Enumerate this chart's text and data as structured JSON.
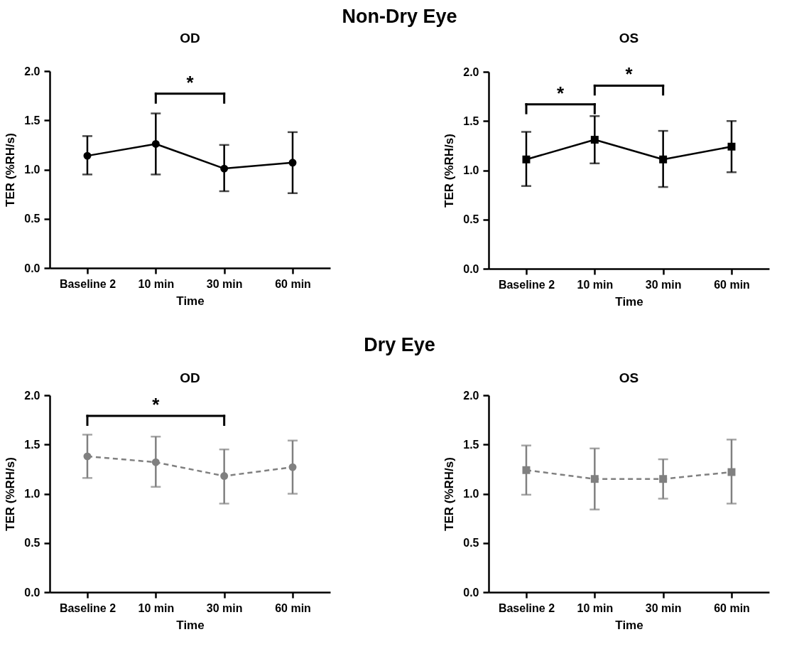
{
  "chart_data": [
    {
      "type": "line",
      "title": "OD",
      "xlabel": "Time",
      "ylabel": "TER (%RH/s)",
      "categories": [
        "Baseline 2",
        "10 min",
        "30 min",
        "60 min"
      ],
      "ylim": [
        0,
        2
      ],
      "yticks": [
        {
          "value": 0,
          "label": "0.0"
        },
        {
          "value": 0.5,
          "label": "0.5"
        },
        {
          "value": 1,
          "label": "1.0"
        },
        {
          "value": 1.5,
          "label": "1.5"
        },
        {
          "value": 2,
          "label": "2.0"
        }
      ],
      "grid": false,
      "marker": "circle",
      "line_style": "solid",
      "annotations": [
        "Non-Dry Eye",
        "*"
      ],
      "series": [
        {
          "color": "#000000",
          "values": [
            1.14,
            1.26,
            1.01,
            1.07
          ],
          "errors": [
            [
              0.95,
              1.34
            ],
            [
              0.95,
              1.57
            ],
            [
              0.78,
              1.25
            ],
            [
              0.76,
              1.38
            ]
          ]
        }
      ]
    },
    {
      "type": "line",
      "title": "OS",
      "xlabel": "Time",
      "ylabel": "TER (%RH/s)",
      "categories": [
        "Baseline 2",
        "10 min",
        "30 min",
        "60 min"
      ],
      "ylim": [
        0,
        2
      ],
      "yticks": [
        {
          "value": 0,
          "label": "0.0"
        },
        {
          "value": 0.5,
          "label": "0.5"
        },
        {
          "value": 1,
          "label": "1.0"
        },
        {
          "value": 1.5,
          "label": "1.5"
        },
        {
          "value": 2,
          "label": "2.0"
        }
      ],
      "grid": false,
      "marker": "square",
      "line_style": "solid",
      "annotations": [
        "*",
        "*"
      ],
      "series": [
        {
          "color": "#000000",
          "values": [
            1.11,
            1.31,
            1.11,
            1.24
          ],
          "errors": [
            [
              0.84,
              1.39
            ],
            [
              1.07,
              1.55
            ],
            [
              0.83,
              1.4
            ],
            [
              0.98,
              1.5
            ]
          ]
        }
      ]
    },
    {
      "type": "line",
      "title": "OD",
      "xlabel": "Time",
      "ylabel": "TER (%RH/s)",
      "categories": [
        "Baseline 2",
        "10 min",
        "30 min",
        "60 min"
      ],
      "ylim": [
        0,
        2
      ],
      "yticks": [
        {
          "value": 0,
          "label": "0.0"
        },
        {
          "value": 0.5,
          "label": "0.5"
        },
        {
          "value": 1,
          "label": "1.0"
        },
        {
          "value": 1.5,
          "label": "1.5"
        },
        {
          "value": 2,
          "label": "2.0"
        }
      ],
      "grid": false,
      "marker": "circle",
      "line_style": "dashed",
      "annotations": [
        "Dry Eye",
        "*"
      ],
      "series": [
        {
          "color": "#808080",
          "values": [
            1.38,
            1.32,
            1.18,
            1.27
          ],
          "errors": [
            [
              1.16,
              1.6
            ],
            [
              1.07,
              1.58
            ],
            [
              0.9,
              1.45
            ],
            [
              1.0,
              1.54
            ]
          ]
        }
      ]
    },
    {
      "type": "line",
      "title": "OS",
      "xlabel": "Time",
      "ylabel": "TER (%RH/s)",
      "categories": [
        "Baseline 2",
        "10 min",
        "30 min",
        "60 min"
      ],
      "ylim": [
        0,
        2
      ],
      "yticks": [
        {
          "value": 0,
          "label": "0.0"
        },
        {
          "value": 0.5,
          "label": "0.5"
        },
        {
          "value": 1,
          "label": "1.0"
        },
        {
          "value": 1.5,
          "label": "1.5"
        },
        {
          "value": 2,
          "label": "2.0"
        }
      ],
      "grid": false,
      "marker": "square",
      "line_style": "dashed",
      "series": [
        {
          "color": "#808080",
          "values": [
            1.24,
            1.15,
            1.15,
            1.22
          ],
          "errors": [
            [
              0.99,
              1.49
            ],
            [
              0.84,
              1.46
            ],
            [
              0.95,
              1.35
            ],
            [
              0.9,
              1.55
            ]
          ]
        }
      ]
    }
  ]
}
